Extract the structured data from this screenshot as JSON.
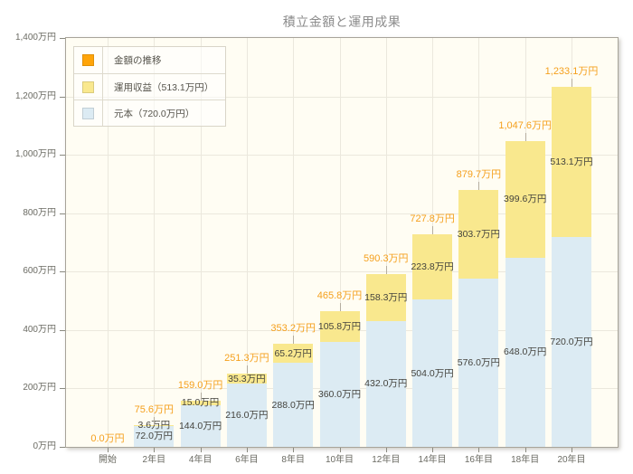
{
  "title": "積立金額と運用成果",
  "legend": {
    "items": [
      {
        "label": "金額の推移",
        "color_key": "total_swatch"
      },
      {
        "label": "運用収益（513.1万円）",
        "color_key": "yield_fill"
      },
      {
        "label": "元本（720.0万円）",
        "color_key": "principal_fill"
      }
    ]
  },
  "colors": {
    "total_swatch": "#FFA408",
    "total_label_text": "#F5A01D",
    "yield_fill": "#F9E88E",
    "principal_fill": "#DCEBF3",
    "plot_bg": "#FFFDF3",
    "gridline": "#EBE8DD",
    "plot_border": "#A8A49A",
    "axis_text": "#6B6B63",
    "value_text": "#45443E",
    "leader_line": "#B5AEA0",
    "title_text": "#8C8C8C",
    "tick_mark": "#8A8A80"
  },
  "chart_data": {
    "type": "bar",
    "stacked": true,
    "title": "積立金額と運用成果",
    "categories": [
      "開始",
      "2年目",
      "4年目",
      "6年目",
      "8年目",
      "10年目",
      "12年目",
      "14年目",
      "16年目",
      "18年目",
      "20年目"
    ],
    "series": [
      {
        "name": "元本",
        "values": [
          0,
          72.0,
          144.0,
          216.0,
          288.0,
          360.0,
          432.0,
          504.0,
          576.0,
          648.0,
          720.0
        ],
        "labels": [
          "",
          "72.0万円",
          "144.0万円",
          "216.0万円",
          "288.0万円",
          "360.0万円",
          "432.0万円",
          "504.0万円",
          "576.0万円",
          "648.0万円",
          "720.0万円"
        ]
      },
      {
        "name": "運用収益",
        "values": [
          0,
          3.6,
          15.0,
          35.3,
          65.2,
          105.8,
          158.3,
          223.8,
          303.7,
          399.6,
          513.1
        ],
        "labels": [
          "",
          "3.6万円",
          "15.0万円",
          "35.3万円",
          "65.2万円",
          "105.8万円",
          "158.3万円",
          "223.8万円",
          "303.7万円",
          "399.6万円",
          "513.1万円"
        ]
      }
    ],
    "totals": {
      "name": "金額の推移",
      "values": [
        0.0,
        75.6,
        159.0,
        251.3,
        353.2,
        465.8,
        590.3,
        727.8,
        879.7,
        1047.6,
        1233.1
      ],
      "labels": [
        "0.0万円",
        "75.6万円",
        "159.0万円",
        "251.3万円",
        "353.2万円",
        "465.8万円",
        "590.3万円",
        "727.8万円",
        "879.7万円",
        "1,047.6万円",
        "1,233.1万円"
      ]
    },
    "ylabel_unit": "万円",
    "ylim": [
      0,
      1400
    ],
    "ytick_step": 200,
    "ytick_labels": [
      "0万円",
      "200万円",
      "400万円",
      "600万円",
      "800万円",
      "1,000万円",
      "1,200万円",
      "1,400万円"
    ],
    "grid": true,
    "legend_position": "top-left"
  }
}
